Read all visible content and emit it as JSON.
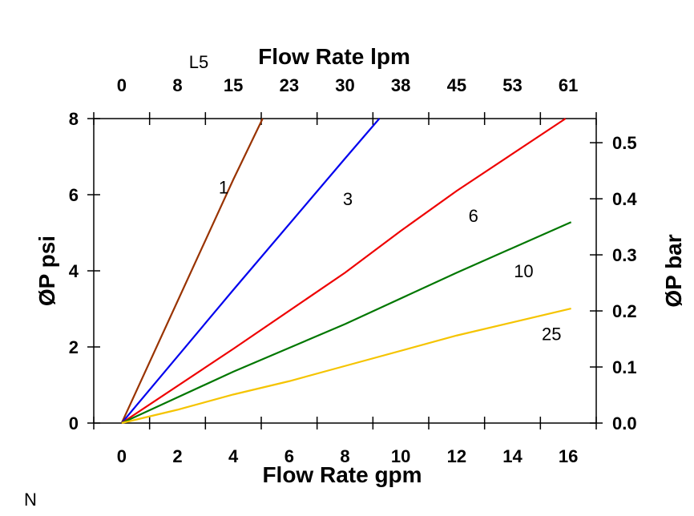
{
  "chart_data": {
    "type": "line",
    "annotation_top": "L5",
    "annotation_bottom": "N",
    "xlabel": "Flow Rate gpm",
    "xlabel_top": "Flow Rate lpm",
    "ylabel": "ØP psi",
    "ylabel_right": "ØP bar",
    "xlim": [
      -1,
      17
    ],
    "ylim": [
      0,
      8
    ],
    "ylim_right_bar": [
      0,
      0.543
    ],
    "x_ticks": [
      0,
      2,
      4,
      6,
      8,
      10,
      12,
      14,
      16
    ],
    "x_tick_labels": [
      "0",
      "2",
      "4",
      "6",
      "8",
      "10",
      "12",
      "14",
      "16"
    ],
    "x_top_tick_labels": [
      "0",
      "8",
      "15",
      "23",
      "30",
      "38",
      "45",
      "53",
      "61"
    ],
    "y_ticks": [
      0,
      2,
      4,
      6,
      8
    ],
    "y_tick_labels": [
      "0",
      "2",
      "4",
      "6",
      "8"
    ],
    "y_right_ticks": [
      0,
      0.1,
      0.2,
      0.3,
      0.4,
      0.5
    ],
    "y_right_tick_labels": [
      "0.0",
      "0.1",
      "0.2",
      "0.3",
      "0.4",
      "0.5"
    ],
    "grid": false,
    "series": [
      {
        "name": "1",
        "color": "#993300",
        "x": [
          0,
          2,
          4,
          5.05
        ],
        "y": [
          0,
          3.2,
          6.4,
          8
        ],
        "label_at": [
          3.65,
          6.2
        ]
      },
      {
        "name": "3",
        "color": "#0000ee",
        "x": [
          0,
          4,
          8,
          9.23
        ],
        "y": [
          0,
          3.5,
          6.95,
          8
        ],
        "label_at": [
          8.1,
          5.9
        ]
      },
      {
        "name": "6",
        "color": "#ee0000",
        "x": [
          0,
          4,
          8,
          10,
          12,
          15.9
        ],
        "y": [
          0,
          1.95,
          3.95,
          5.05,
          6.1,
          8
        ],
        "label_at": [
          12.6,
          5.45
        ]
      },
      {
        "name": "10",
        "color": "#007700",
        "x": [
          0,
          4,
          8,
          12,
          16.1
        ],
        "y": [
          0,
          1.35,
          2.6,
          3.95,
          5.28
        ],
        "label_at": [
          14.4,
          4.0
        ]
      },
      {
        "name": "25",
        "color": "#f5c400",
        "x": [
          0,
          2,
          4,
          6,
          8,
          12,
          16.1
        ],
        "y": [
          0,
          0.35,
          0.75,
          1.1,
          1.5,
          2.3,
          3.01
        ],
        "label_at": [
          15.4,
          2.35
        ]
      }
    ]
  }
}
